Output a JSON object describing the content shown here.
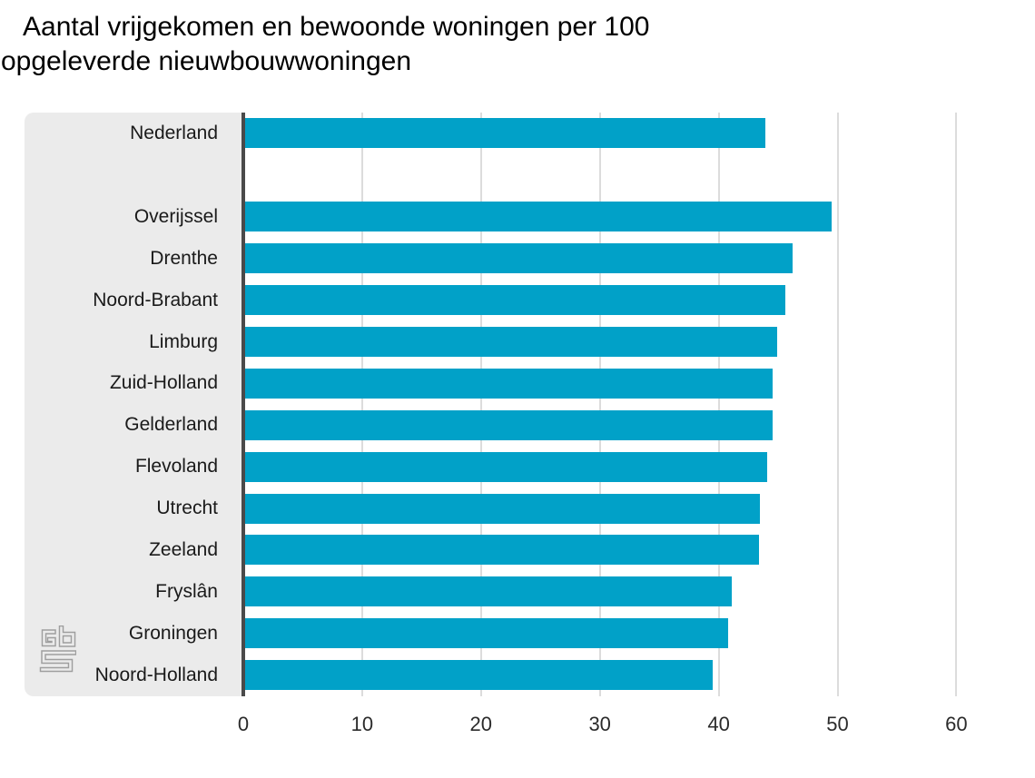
{
  "chart_data": {
    "type": "bar",
    "orientation": "horizontal",
    "title": "Aantal vrijgekomen en bewoonde woningen per 100 opgeleverde nieuwbouwwoningen",
    "title_lines": [
      "Aantal vrijgekomen en bewoonde woningen per 100",
      "opgeleverde nieuwbouwwoningen"
    ],
    "categories": [
      "Nederland",
      "Overijssel",
      "Drenthe",
      "Noord-Brabant",
      "Limburg",
      "Zuid-Holland",
      "Gelderland",
      "Flevoland",
      "Utrecht",
      "Zeeland",
      "Fryslân",
      "Groningen",
      "Noord-Holland"
    ],
    "values": [
      43.9,
      49.5,
      46.2,
      45.6,
      44.9,
      44.5,
      44.5,
      44.1,
      43.5,
      43.4,
      41.1,
      40.8,
      39.5
    ],
    "row_gap_after": "Nederland",
    "xlabel": "",
    "ylabel": "",
    "xlim": [
      0,
      60
    ],
    "x_ticks": [
      0,
      10,
      20,
      30,
      40,
      50,
      60
    ],
    "grid": true,
    "legend": "none",
    "colors": {
      "bar": "#01a1c8",
      "label_panel": "#ebebeb",
      "axis_line": "#4a4a4a",
      "gridline": "#dcdcdc",
      "category_text": "#1a1a1a",
      "tick_text": "#2b2b2b",
      "title_text": "#000000",
      "logo": "#9e9e9e",
      "background": "#ffffff"
    }
  },
  "branding": {
    "logo_name": "cbs-logo"
  }
}
